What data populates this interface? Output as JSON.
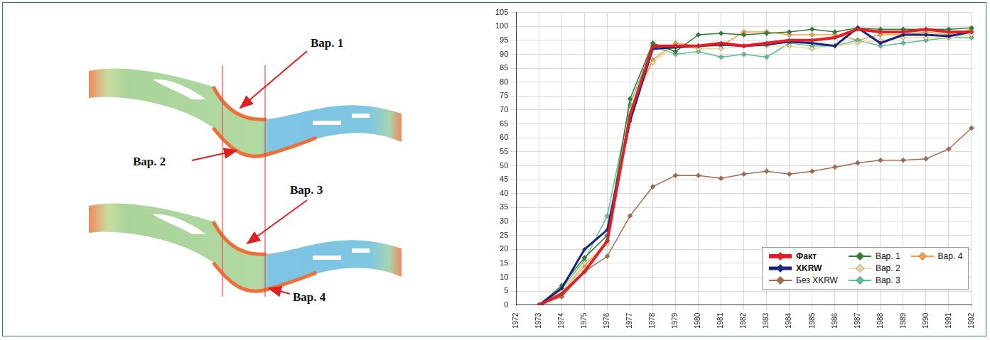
{
  "diagram": {
    "labels": [
      "Вар. 1",
      "Вар. 2",
      "Вар. 3",
      "Вар. 4"
    ]
  },
  "chart_data": {
    "type": "line",
    "categories": [
      "1972",
      "1973",
      "1974",
      "1975",
      "1976",
      "1977",
      "1978",
      "1979",
      "1980",
      "1981",
      "1982",
      "1983",
      "1984",
      "1985",
      "1986",
      "1987",
      "1988",
      "1989",
      "1990",
      "1991",
      "1992"
    ],
    "series": [
      {
        "name": "Факт",
        "color": "#e31e24",
        "marker": "diamond",
        "values": [
          null,
          0,
          4,
          12,
          23,
          68,
          93,
          93,
          93,
          94,
          93,
          94,
          95,
          95,
          96,
          99,
          98,
          98,
          99,
          98,
          98
        ]
      },
      {
        "name": "XKRW",
        "color": "#1a2380",
        "marker": "diamond",
        "values": [
          null,
          0,
          6,
          20,
          27,
          66,
          92,
          92.5,
          93,
          93.5,
          93,
          93.5,
          94.5,
          94,
          93,
          99.5,
          94,
          97,
          97,
          96.5,
          98
        ]
      },
      {
        "name": "Без XKRW",
        "color": "#a86a4e",
        "marker": "diamond",
        "values": [
          null,
          0,
          3,
          12,
          17.5,
          32,
          42.5,
          46.5,
          46.5,
          45.5,
          47,
          48,
          47,
          48,
          49.5,
          51,
          52,
          52,
          52.5,
          56,
          63.5
        ]
      },
      {
        "name": "Вар. 1",
        "color": "#2e7d32",
        "marker": "diamond",
        "values": [
          null,
          0,
          7,
          17,
          25,
          74,
          94,
          91,
          97,
          97.5,
          97,
          97.5,
          98,
          99,
          98,
          99.5,
          99,
          99,
          99,
          99,
          99.5
        ]
      },
      {
        "name": "Вар. 2",
        "color": "#ead9a0",
        "marker": "diamond",
        "values": [
          null,
          0,
          5,
          15,
          22,
          70,
          87,
          93,
          92,
          92,
          93,
          93,
          93,
          92,
          93,
          94,
          95,
          96,
          96,
          96,
          97
        ]
      },
      {
        "name": "Вар. 3",
        "color": "#5cbf8f",
        "marker": "diamond",
        "values": [
          null,
          0,
          6,
          16,
          32,
          72,
          93,
          90,
          91,
          89,
          90,
          89,
          94,
          93,
          93,
          95,
          93,
          94,
          95,
          96,
          96
        ]
      },
      {
        "name": "Вар. 4",
        "color": "#f0a040",
        "marker": "diamond",
        "values": [
          null,
          0,
          5,
          14,
          23,
          70,
          88,
          94,
          93,
          93,
          98,
          98,
          97,
          97,
          97,
          95,
          97,
          97,
          98,
          97,
          99
        ]
      }
    ],
    "ylim": [
      0,
      105
    ],
    "yticks": [
      0,
      5,
      10,
      15,
      20,
      25,
      30,
      35,
      40,
      45,
      50,
      55,
      60,
      65,
      70,
      75,
      80,
      85,
      90,
      95,
      100,
      105
    ],
    "grid": true,
    "legend": "lower right"
  }
}
